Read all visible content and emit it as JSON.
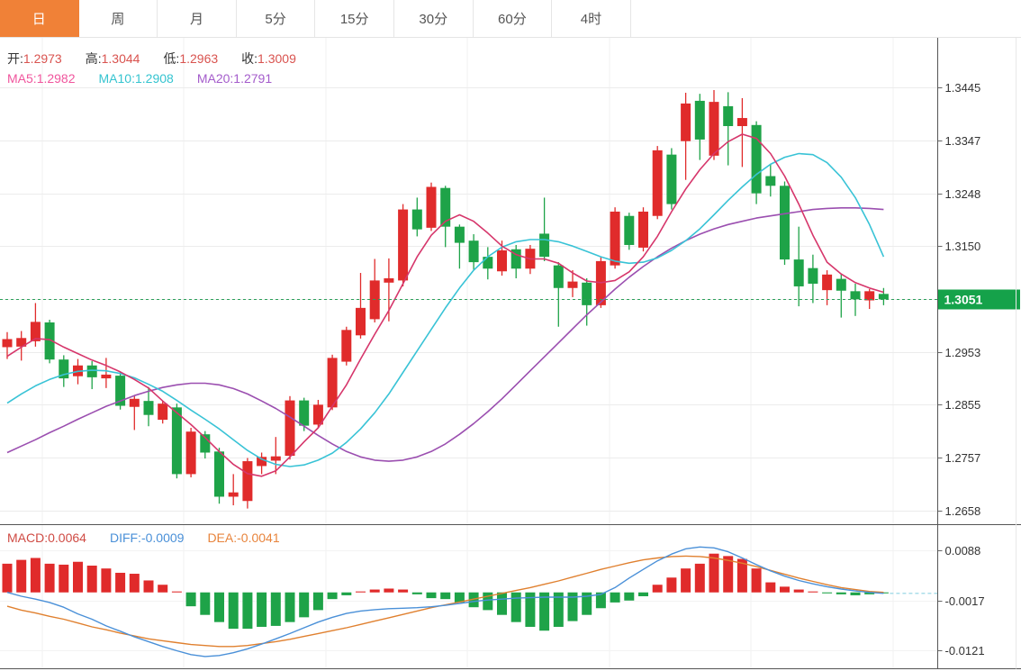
{
  "tabs": {
    "items": [
      {
        "label": "日",
        "name": "tab-day",
        "active": true
      },
      {
        "label": "周",
        "name": "tab-week",
        "active": false
      },
      {
        "label": "月",
        "name": "tab-month",
        "active": false
      },
      {
        "label": "5分",
        "name": "tab-5min",
        "active": false
      },
      {
        "label": "15分",
        "name": "tab-15min",
        "active": false
      },
      {
        "label": "30分",
        "name": "tab-30min",
        "active": false
      },
      {
        "label": "60分",
        "name": "tab-60min",
        "active": false
      },
      {
        "label": "4时",
        "name": "tab-4hour",
        "active": false
      }
    ]
  },
  "main_legend": {
    "ohlc": [
      {
        "label": "开:",
        "value": "1.2973"
      },
      {
        "label": "高:",
        "value": "1.3044"
      },
      {
        "label": "低:",
        "value": "1.2963"
      },
      {
        "label": "收:",
        "value": "1.3009"
      }
    ],
    "value_color": "#d9534f",
    "ma": [
      {
        "label": "MA5:",
        "value": "1.2982",
        "color": "#f0559d"
      },
      {
        "label": "MA10:",
        "value": "1.2908",
        "color": "#35c4d0"
      },
      {
        "label": "MA20:",
        "value": "1.2791",
        "color": "#a45ccb"
      }
    ]
  },
  "macd_legend": [
    {
      "label": "MACD:",
      "value": "0.0064",
      "color": "#cf4a43"
    },
    {
      "label": "DIFF:",
      "value": "-0.0009",
      "color": "#4a90d8"
    },
    {
      "label": "DEA:",
      "value": "-0.0041",
      "color": "#e8843c"
    }
  ],
  "price_axis": {
    "tick_labels": [
      "1.3445",
      "1.3347",
      "1.3248",
      "1.3150",
      "1.3051",
      "1.2953",
      "1.2855",
      "1.2757",
      "1.2658"
    ],
    "current": {
      "value": "1.3051",
      "badge_color": "#15a24a"
    }
  },
  "macd_axis": {
    "tick_labels": [
      "0.0088",
      "-0.0017",
      "-0.0121"
    ]
  },
  "colors": {
    "accent": "#f08137",
    "candle_up": "#e02b2b",
    "candle_down": "#1ea348",
    "ma5_line": "#d6366b",
    "ma10_line": "#39c3d6",
    "ma20_line": "#9b4fb0",
    "diff_line": "#4a90d8",
    "dea_line": "#e0802f",
    "hist_up": "#e02b2b",
    "hist_down": "#1ea348",
    "price_line": "#2ca05a",
    "diff_dash": "#8fd4e4",
    "grid": "#ececec",
    "frame": "#555555",
    "axis_text": "#333333"
  },
  "chart_data": {
    "type": "candlestick+macd",
    "title": "日K线 (Daily candlestick with MA5/MA10/MA20 and MACD)",
    "price_ticks": [
      1.3445,
      1.3347,
      1.3248,
      1.315,
      1.3051,
      1.2953,
      1.2855,
      1.2757,
      1.2658
    ],
    "current_price": 1.3051,
    "macd_ticks": [
      0.0088,
      -0.0017,
      -0.0121
    ],
    "legend_entries": [
      "MA5",
      "MA10",
      "MA20",
      "MACD",
      "DIFF",
      "DEA"
    ],
    "candles_ohlc": [
      [
        1.2962,
        1.299,
        1.294,
        1.2977
      ],
      [
        1.2963,
        1.2992,
        1.2937,
        1.2979
      ],
      [
        1.2973,
        1.3044,
        1.2963,
        1.3009
      ],
      [
        1.3008,
        1.3013,
        1.2932,
        1.2939
      ],
      [
        1.2939,
        1.2947,
        1.2888,
        1.2904
      ],
      [
        1.2908,
        1.294,
        1.2893,
        1.2928
      ],
      [
        1.2928,
        1.2936,
        1.2884,
        1.2906
      ],
      [
        1.2904,
        1.2942,
        1.2886,
        1.2911
      ],
      [
        1.2909,
        1.2917,
        1.2846,
        1.2853
      ],
      [
        1.2851,
        1.2872,
        1.2808,
        1.2866
      ],
      [
        1.2862,
        1.2888,
        1.2815,
        1.2836
      ],
      [
        1.2827,
        1.2862,
        1.282,
        1.2857
      ],
      [
        1.285,
        1.2857,
        1.2718,
        1.2726
      ],
      [
        1.2726,
        1.2812,
        1.272,
        1.2805
      ],
      [
        1.28,
        1.2806,
        1.2755,
        1.2766
      ],
      [
        1.2768,
        1.2775,
        1.2671,
        1.2684
      ],
      [
        1.2684,
        1.2726,
        1.2668,
        1.2692
      ],
      [
        1.2676,
        1.2756,
        1.2662,
        1.275
      ],
      [
        1.2741,
        1.2766,
        1.2726,
        1.2758
      ],
      [
        1.2751,
        1.2795,
        1.2726,
        1.2759
      ],
      [
        1.276,
        1.2871,
        1.2753,
        1.2863
      ],
      [
        1.2863,
        1.2868,
        1.2806,
        1.2816
      ],
      [
        1.2818,
        1.2864,
        1.2812,
        1.2855
      ],
      [
        1.285,
        1.2948,
        1.2845,
        1.2942
      ],
      [
        1.2935,
        1.3,
        1.2928,
        1.2994
      ],
      [
        1.2984,
        1.31,
        1.2978,
        1.3035
      ],
      [
        1.3014,
        1.3126,
        1.3008,
        1.3086
      ],
      [
        1.3082,
        1.3127,
        1.301,
        1.309
      ],
      [
        1.3086,
        1.3228,
        1.3075,
        1.3218
      ],
      [
        1.3218,
        1.324,
        1.3168,
        1.3181
      ],
      [
        1.3184,
        1.3268,
        1.3178,
        1.326
      ],
      [
        1.3258,
        1.3262,
        1.3148,
        1.3186
      ],
      [
        1.3186,
        1.319,
        1.3108,
        1.3156
      ],
      [
        1.316,
        1.3172,
        1.3105,
        1.312
      ],
      [
        1.313,
        1.3148,
        1.3088,
        1.3108
      ],
      [
        1.3103,
        1.316,
        1.3095,
        1.3142
      ],
      [
        1.3144,
        1.3152,
        1.309,
        1.3108
      ],
      [
        1.3108,
        1.3152,
        1.3098,
        1.3145
      ],
      [
        1.3173,
        1.324,
        1.3122,
        1.313
      ],
      [
        1.3114,
        1.312,
        1.3,
        1.3072
      ],
      [
        1.3072,
        1.3105,
        1.3055,
        1.3084
      ],
      [
        1.3082,
        1.309,
        1.3002,
        1.304
      ],
      [
        1.304,
        1.313,
        1.3035,
        1.3122
      ],
      [
        1.3114,
        1.3222,
        1.3108,
        1.3214
      ],
      [
        1.3206,
        1.3212,
        1.3143,
        1.3152
      ],
      [
        1.3147,
        1.3222,
        1.314,
        1.3214
      ],
      [
        1.3206,
        1.3336,
        1.32,
        1.3328
      ],
      [
        1.332,
        1.3332,
        1.3218,
        1.3228
      ],
      [
        1.3345,
        1.3435,
        1.3273,
        1.3415
      ],
      [
        1.342,
        1.3433,
        1.331,
        1.3348
      ],
      [
        1.3318,
        1.344,
        1.331,
        1.3418
      ],
      [
        1.341,
        1.3436,
        1.33,
        1.3373
      ],
      [
        1.3373,
        1.3425,
        1.3297,
        1.3388
      ],
      [
        1.3375,
        1.3382,
        1.3228,
        1.3248
      ],
      [
        1.328,
        1.3302,
        1.3242,
        1.3262
      ],
      [
        1.3262,
        1.327,
        1.3115,
        1.3125
      ],
      [
        1.3125,
        1.3186,
        1.3038,
        1.3075
      ],
      [
        1.3109,
        1.3134,
        1.3044,
        1.308
      ],
      [
        1.3068,
        1.3105,
        1.304,
        1.3097
      ],
      [
        1.3089,
        1.3098,
        1.3017,
        1.3067
      ],
      [
        1.3066,
        1.308,
        1.302,
        1.3051
      ],
      [
        1.3049,
        1.307,
        1.3033,
        1.3066
      ],
      [
        1.3061,
        1.3072,
        1.304,
        1.3051
      ]
    ],
    "ma5": [
      1.2945,
      1.2962,
      1.2978,
      1.2976,
      1.2962,
      1.295,
      1.2938,
      1.2928,
      1.2916,
      1.2902,
      1.2886,
      1.2862,
      1.284,
      1.2818,
      1.2794,
      1.2768,
      1.2744,
      1.2727,
      1.2722,
      1.2732,
      1.2758,
      1.2786,
      1.2812,
      1.2852,
      1.2892,
      1.294,
      1.2986,
      1.303,
      1.308,
      1.313,
      1.317,
      1.3196,
      1.3208,
      1.3196,
      1.3174,
      1.315,
      1.3134,
      1.3126,
      1.3126,
      1.3118,
      1.31,
      1.3085,
      1.3082,
      1.3086,
      1.3102,
      1.313,
      1.3168,
      1.3214,
      1.3256,
      1.3292,
      1.3322,
      1.3344,
      1.3358,
      1.335,
      1.3322,
      1.328,
      1.3228,
      1.317,
      1.312,
      1.3098,
      1.3082,
      1.3072,
      1.3064
    ],
    "ma10": [
      1.2858,
      1.2875,
      1.289,
      1.2902,
      1.2911,
      1.2917,
      1.2919,
      1.2918,
      1.2913,
      1.2905,
      1.2893,
      1.288,
      1.2863,
      1.2845,
      1.2828,
      1.281,
      1.279,
      1.277,
      1.2754,
      1.2744,
      1.274,
      1.2743,
      1.2752,
      1.2765,
      1.2785,
      1.281,
      1.284,
      1.2875,
      1.2915,
      1.2955,
      1.2995,
      1.3035,
      1.3072,
      1.3105,
      1.313,
      1.3148,
      1.3158,
      1.3162,
      1.3162,
      1.3158,
      1.315,
      1.314,
      1.313,
      1.3122,
      1.3118,
      1.312,
      1.3128,
      1.3142,
      1.316,
      1.3182,
      1.3208,
      1.3235,
      1.326,
      1.3283,
      1.3302,
      1.3315,
      1.3322,
      1.332,
      1.3305,
      1.3278,
      1.324,
      1.319,
      1.313
    ],
    "ma20": [
      1.2766,
      1.2778,
      1.279,
      1.2803,
      1.2815,
      1.2828,
      1.284,
      1.2852,
      1.2862,
      1.2872,
      1.288,
      1.2887,
      1.2892,
      1.2895,
      1.2895,
      1.2892,
      1.2885,
      1.2875,
      1.2862,
      1.2848,
      1.2832,
      1.2815,
      1.2798,
      1.2782,
      1.2768,
      1.2758,
      1.2752,
      1.275,
      1.2752,
      1.2758,
      1.2768,
      1.2782,
      1.28,
      1.282,
      1.2842,
      1.2866,
      1.2892,
      1.2918,
      1.2944,
      1.297,
      1.2996,
      1.3022,
      1.3046,
      1.307,
      1.3092,
      1.3112,
      1.313,
      1.3146,
      1.316,
      1.3172,
      1.3182,
      1.319,
      1.3196,
      1.3202,
      1.3206,
      1.321,
      1.3214,
      1.3218,
      1.322,
      1.3221,
      1.3221,
      1.322,
      1.3218
    ],
    "macd_hist": [
      0.006,
      0.0068,
      0.0072,
      0.006,
      0.0058,
      0.0064,
      0.0056,
      0.005,
      0.0041,
      0.0039,
      0.0025,
      0.0016,
      0.0002,
      -0.0029,
      -0.0047,
      -0.0062,
      -0.0076,
      -0.0076,
      -0.0072,
      -0.007,
      -0.0062,
      -0.0052,
      -0.0037,
      -0.0014,
      -0.0006,
      0.0002,
      0.0006,
      0.0008,
      0.0006,
      -0.0004,
      -0.0012,
      -0.0014,
      -0.0021,
      -0.0031,
      -0.0037,
      -0.0047,
      -0.0062,
      -0.0072,
      -0.008,
      -0.0072,
      -0.006,
      -0.0047,
      -0.0033,
      -0.0021,
      -0.0017,
      -0.0008,
      0.0016,
      0.0031,
      0.005,
      0.006,
      0.0081,
      0.0076,
      0.007,
      0.005,
      0.0021,
      0.0012,
      0.0006,
      0.0002,
      -0.0002,
      -0.0004,
      -0.0006,
      -0.0004,
      -0.0002
    ],
    "diff": [
      0.0,
      -0.0008,
      -0.0014,
      -0.0021,
      -0.0031,
      -0.0045,
      -0.0056,
      -0.007,
      -0.0081,
      -0.0093,
      -0.0103,
      -0.0113,
      -0.0122,
      -0.013,
      -0.0134,
      -0.0132,
      -0.0126,
      -0.0118,
      -0.0108,
      -0.0097,
      -0.0086,
      -0.0074,
      -0.0062,
      -0.0052,
      -0.0044,
      -0.0039,
      -0.0036,
      -0.0034,
      -0.0033,
      -0.0032,
      -0.003,
      -0.0027,
      -0.0023,
      -0.0019,
      -0.0016,
      -0.0014,
      -0.0012,
      -0.0011,
      -0.001,
      -0.001,
      -0.001,
      -0.0008,
      -0.0004,
      0.001,
      0.003,
      0.0048,
      0.0066,
      0.008,
      0.0091,
      0.0095,
      0.0093,
      0.0085,
      0.0072,
      0.0058,
      0.0045,
      0.0034,
      0.0025,
      0.0018,
      0.0012,
      0.0007,
      0.0003,
      0.0,
      -0.0002
    ],
    "dea": [
      -0.0029,
      -0.0037,
      -0.0043,
      -0.005,
      -0.0056,
      -0.0064,
      -0.0072,
      -0.0078,
      -0.0085,
      -0.0091,
      -0.0097,
      -0.0101,
      -0.0105,
      -0.0109,
      -0.0111,
      -0.0113,
      -0.0113,
      -0.0111,
      -0.0107,
      -0.0103,
      -0.0098,
      -0.0092,
      -0.0086,
      -0.008,
      -0.0074,
      -0.0067,
      -0.006,
      -0.0053,
      -0.0046,
      -0.0039,
      -0.0032,
      -0.0026,
      -0.002,
      -0.0014,
      -0.0008,
      -0.0002,
      0.0004,
      0.001,
      0.0017,
      0.0024,
      0.0032,
      0.004,
      0.0048,
      0.0055,
      0.0062,
      0.0068,
      0.0072,
      0.0075,
      0.0076,
      0.0075,
      0.0072,
      0.0067,
      0.0061,
      0.0054,
      0.0046,
      0.0038,
      0.003,
      0.0023,
      0.0016,
      0.001,
      0.0006,
      0.0002,
      0.0
    ]
  }
}
